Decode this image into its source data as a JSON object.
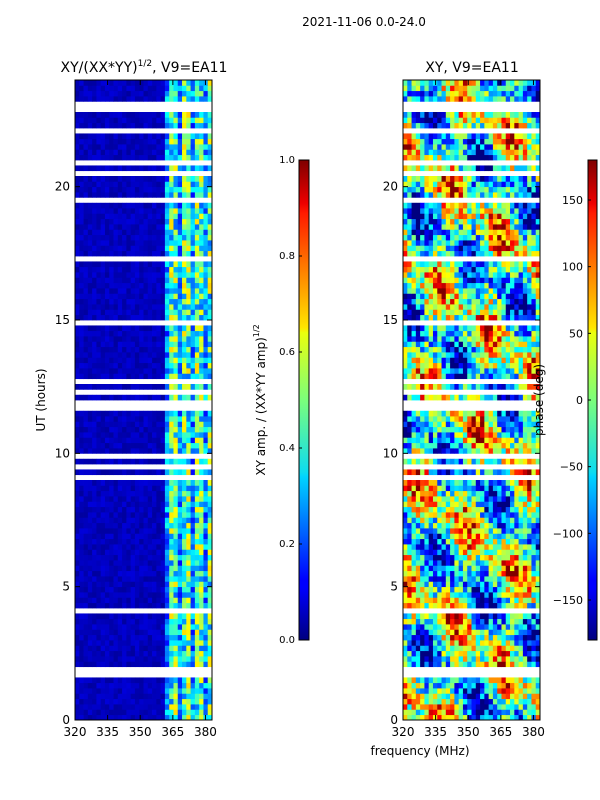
{
  "figure": {
    "suptitle": "2021-11-06 0.0-24.0",
    "xlabel_shared": "frequency (MHz)"
  },
  "chart_data": [
    {
      "type": "heatmap",
      "title_base": "XY/(XX*YY)",
      "title_sup": "1/2",
      "title_tail": ", V9=EA11",
      "xlabel": "frequency (MHz)",
      "ylabel": "UT (hours)",
      "xlim": [
        320,
        383
      ],
      "ylim": [
        0,
        24
      ],
      "xticks": [
        320,
        335,
        350,
        365,
        380
      ],
      "yticks": [
        0,
        5,
        10,
        15,
        20
      ],
      "colorbar": {
        "label_base": "XY amp. / (XX*YY amp)",
        "label_sup": "1/2",
        "range": [
          0.0,
          1.0
        ],
        "ticks": [
          "0.0",
          "0.2",
          "0.4",
          "0.6",
          "0.8",
          "1.0"
        ],
        "colormap": "jet"
      },
      "description": "Normalized XY amplitude: low (~0.05) below ~360 MHz, elevated (~0.3-0.6) in 360-383 MHz band; white gaps are flagged times"
    },
    {
      "type": "heatmap",
      "title": "XY, V9=EA11",
      "xlabel": "frequency (MHz)",
      "ylabel": "",
      "xlim": [
        320,
        383
      ],
      "ylim": [
        0,
        24
      ],
      "xticks": [
        320,
        335,
        350,
        365,
        380
      ],
      "yticks": [
        0,
        5,
        10,
        15,
        20
      ],
      "colorbar": {
        "label": "phase (deg)",
        "range": [
          -180,
          180
        ],
        "ticks": [
          "-150",
          "-100",
          "-50",
          "0",
          "50",
          "100",
          "150"
        ],
        "colormap": "jet"
      },
      "description": "XY phase in degrees across frequency and UT; white gaps are flagged times"
    }
  ]
}
